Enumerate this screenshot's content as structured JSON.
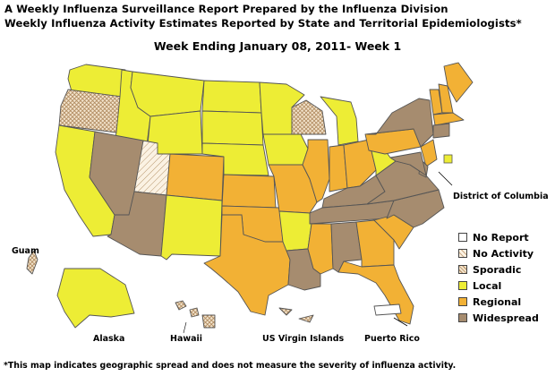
{
  "title_line1": "A Weekly Influenza Surveillance Report Prepared by the Influenza Division",
  "title_line2": "Weekly Influenza Activity Estimates Reported by State and Territorial Epidemiologists*",
  "week_label": "Week Ending January 08, 2011- Week 1",
  "footnote": "*This map indicates geographic spread and does not measure the severity of influenza activity.",
  "colors": {
    "no_report": "#ffffff",
    "no_activity": "#fbf2e3",
    "sporadic": "#efdcc0",
    "local": "#eded35",
    "regional": "#f2b135",
    "widespread": "#a68c6f",
    "border": "#555555"
  },
  "legend": [
    {
      "label": "No Report",
      "level": "no_report"
    },
    {
      "label": "No Activity",
      "level": "no_activity"
    },
    {
      "label": "Sporadic",
      "level": "sporadic"
    },
    {
      "label": "Local",
      "level": "local"
    },
    {
      "label": "Regional",
      "level": "regional"
    },
    {
      "label": "Widespread",
      "level": "widespread"
    }
  ],
  "labels": {
    "guam": "Guam",
    "alaska": "Alaska",
    "hawaii": "Hawaii",
    "usvi": "US Virgin Islands",
    "puerto_rico": "Puerto Rico",
    "dc": "District of Columbia"
  },
  "regions": {
    "WA": "local",
    "OR": "sporadic",
    "CA": "local",
    "ID": "local",
    "NV": "widespread",
    "MT": "local",
    "WY": "local",
    "UT": "no_activity",
    "AZ": "widespread",
    "CO": "regional",
    "NM": "local",
    "ND": "local",
    "SD": "local",
    "NE": "local",
    "KS": "regional",
    "OK": "regional",
    "TX": "regional",
    "MN": "local",
    "IA": "local",
    "MO": "regional",
    "AR": "local",
    "LA": "widespread",
    "WI": "sporadic",
    "IL": "regional",
    "MI": "local",
    "IN": "regional",
    "OH": "regional",
    "KY": "widespread",
    "TN": "widespread",
    "MS": "regional",
    "AL": "widespread",
    "GA": "regional",
    "FL": "regional",
    "SC": "regional",
    "NC": "widespread",
    "VA": "widespread",
    "WV": "local",
    "PA": "regional",
    "NY": "widespread",
    "VT": "regional",
    "NH": "regional",
    "ME": "regional",
    "MA": "regional",
    "CT": "widespread",
    "NJ": "regional",
    "DE": "widespread",
    "MD": "widespread",
    "DC": "local",
    "AK": "local",
    "HI": "sporadic",
    "GU": "sporadic",
    "VI": "sporadic",
    "PR": "no_report"
  }
}
